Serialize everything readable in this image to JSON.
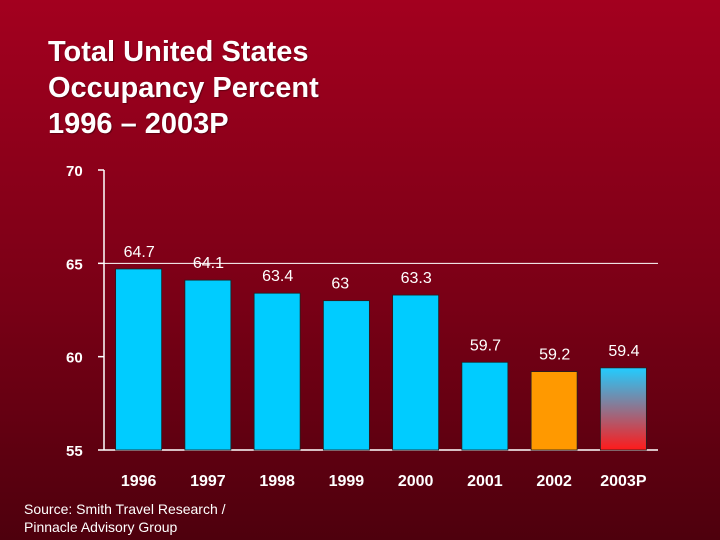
{
  "title_lines": [
    "Total United States",
    "Occupancy Percent",
    "1996 – 2003P"
  ],
  "source_lines": [
    "Source: Smith Travel Research /",
    "Pinnacle Advisory Group"
  ],
  "colors": {
    "bar_default": "#00ccff",
    "bar_2002": "#ff9900",
    "bar_2003p_top": "#22ccff",
    "bar_2003p_bottom": "#ff1a1a",
    "axis": "#ffffff",
    "text": "#ffffff"
  },
  "chart_data": {
    "type": "bar",
    "title": "Total United States Occupancy Percent 1996 – 2003P",
    "xlabel": "",
    "ylabel": "",
    "categories": [
      "1996",
      "1997",
      "1998",
      "1999",
      "2000",
      "2001",
      "2002",
      "2003P"
    ],
    "values": [
      64.7,
      64.1,
      63.4,
      63,
      63.3,
      59.7,
      59.2,
      59.4
    ],
    "data_labels": [
      "64.7",
      "64.1",
      "63.4",
      "63",
      "63.3",
      "59.7",
      "59.2",
      "59.4"
    ],
    "ylim": [
      55,
      70
    ],
    "yticks": [
      70,
      65,
      60,
      55
    ],
    "grid": false,
    "legend": "none",
    "bar_styles": [
      "default",
      "default",
      "default",
      "default",
      "default",
      "default",
      "orange",
      "gradient"
    ]
  }
}
